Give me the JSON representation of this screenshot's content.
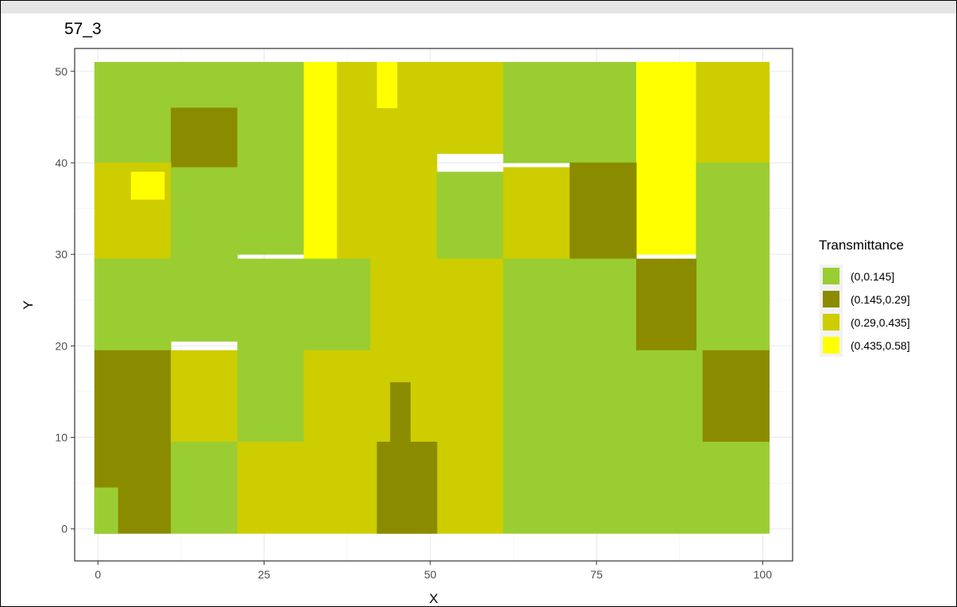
{
  "chart_data": {
    "type": "heatmap",
    "title": "57_3",
    "xlabel": "X",
    "ylabel": "Y",
    "xlim": [
      -3.5,
      104.5
    ],
    "ylim": [
      -3.5,
      52.5
    ],
    "x_ticks": [
      0,
      25,
      50,
      75,
      100
    ],
    "y_ticks": [
      0,
      10,
      20,
      30,
      40,
      50
    ],
    "grid": true,
    "legend": {
      "title": "Transmittance",
      "position": "right",
      "entries": [
        {
          "label": "(0,0.145]",
          "color": "#9acd32"
        },
        {
          "label": "(0.145,0.29]",
          "color": "#8b8b00"
        },
        {
          "label": "(0.29,0.435]",
          "color": "#cdcd00"
        },
        {
          "label": "(0.435,0.58]",
          "color": "#ffff00"
        }
      ]
    },
    "regions": [
      {
        "class": 0,
        "x": [
          -0.5,
          21
        ],
        "y": [
          40,
          51
        ]
      },
      {
        "class": 1,
        "x": [
          11,
          21
        ],
        "y": [
          39.5,
          46
        ]
      },
      {
        "class": 0,
        "x": [
          21,
          31
        ],
        "y": [
          30,
          51
        ]
      },
      {
        "class": 3,
        "x": [
          31,
          36
        ],
        "y": [
          29.5,
          51
        ]
      },
      {
        "class": 2,
        "x": [
          36,
          61
        ],
        "y": [
          41,
          51
        ]
      },
      {
        "class": 3,
        "x": [
          42,
          45
        ],
        "y": [
          46,
          51
        ]
      },
      {
        "class": 0,
        "x": [
          61,
          81
        ],
        "y": [
          40,
          51
        ]
      },
      {
        "class": 3,
        "x": [
          81,
          90
        ],
        "y": [
          30,
          51
        ]
      },
      {
        "class": 2,
        "x": [
          90,
          101
        ],
        "y": [
          40,
          51
        ]
      },
      {
        "class": 2,
        "x": [
          -0.5,
          11
        ],
        "y": [
          29.5,
          40
        ]
      },
      {
        "class": 3,
        "x": [
          5,
          10
        ],
        "y": [
          36,
          39
        ]
      },
      {
        "class": 0,
        "x": [
          11,
          21
        ],
        "y": [
          20.5,
          39.5
        ]
      },
      {
        "class": 2,
        "x": [
          36,
          51
        ],
        "y": [
          29.5,
          41
        ]
      },
      {
        "class": 0,
        "x": [
          51,
          61
        ],
        "y": [
          29.5,
          39
        ]
      },
      {
        "class": 2,
        "x": [
          61,
          71
        ],
        "y": [
          29.5,
          39.5
        ]
      },
      {
        "class": 1,
        "x": [
          71,
          81
        ],
        "y": [
          29.5,
          40
        ]
      },
      {
        "class": 0,
        "x": [
          90,
          101
        ],
        "y": [
          19.5,
          40
        ]
      },
      {
        "class": 0,
        "x": [
          -0.5,
          11
        ],
        "y": [
          19.5,
          29.5
        ]
      },
      {
        "class": 0,
        "x": [
          21,
          41
        ],
        "y": [
          19.5,
          29.5
        ]
      },
      {
        "class": 2,
        "x": [
          41,
          61
        ],
        "y": [
          19.5,
          29.5
        ]
      },
      {
        "class": 0,
        "x": [
          61,
          81
        ],
        "y": [
          19.5,
          29.5
        ]
      },
      {
        "class": 1,
        "x": [
          81,
          90
        ],
        "y": [
          19.5,
          29.5
        ]
      },
      {
        "class": 1,
        "x": [
          -0.5,
          11
        ],
        "y": [
          -0.5,
          19.5
        ]
      },
      {
        "class": 0,
        "x": [
          -0.5,
          3
        ],
        "y": [
          -0.5,
          4.5
        ]
      },
      {
        "class": 2,
        "x": [
          11,
          21
        ],
        "y": [
          9.5,
          19.5
        ]
      },
      {
        "class": 0,
        "x": [
          21,
          31
        ],
        "y": [
          9.5,
          19.5
        ]
      },
      {
        "class": 2,
        "x": [
          31,
          41
        ],
        "y": [
          9.5,
          19.5
        ]
      },
      {
        "class": 2,
        "x": [
          41,
          61
        ],
        "y": [
          -0.5,
          19.5
        ]
      },
      {
        "class": 1,
        "x": [
          42,
          51
        ],
        "y": [
          -0.5,
          9.5
        ]
      },
      {
        "class": 1,
        "x": [
          44,
          47
        ],
        "y": [
          9.5,
          16
        ]
      },
      {
        "class": 0,
        "x": [
          61,
          91
        ],
        "y": [
          -0.5,
          19.5
        ]
      },
      {
        "class": 1,
        "x": [
          91,
          101
        ],
        "y": [
          9.5,
          19.5
        ]
      },
      {
        "class": 0,
        "x": [
          91,
          101
        ],
        "y": [
          -0.5,
          9.5
        ]
      },
      {
        "class": 0,
        "x": [
          11,
          21
        ],
        "y": [
          -0.5,
          9.5
        ]
      },
      {
        "class": 2,
        "x": [
          21,
          41
        ],
        "y": [
          -0.5,
          9.5
        ]
      }
    ]
  }
}
